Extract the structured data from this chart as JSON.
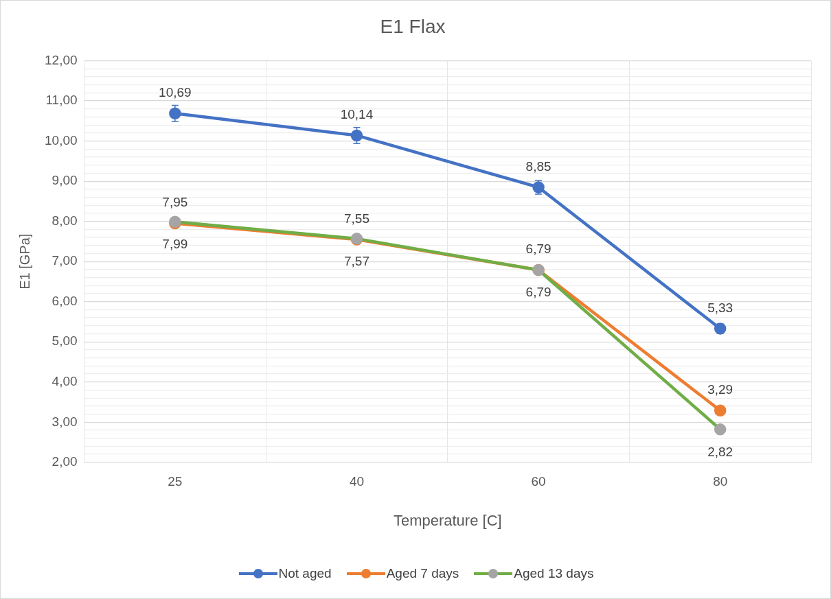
{
  "chart_data": {
    "type": "line",
    "title": "E1 Flax",
    "xlabel": "Temperature [C]",
    "ylabel": "E1 [GPa]",
    "categories": [
      "25",
      "40",
      "60",
      "80"
    ],
    "series": [
      {
        "name": "Not aged",
        "color": "#4472c4",
        "values": [
          10.69,
          10.14,
          8.85,
          5.33
        ],
        "errors": [
          0.2,
          0.2,
          0.17,
          0.12
        ],
        "value_labels": [
          "10,69",
          "10,14",
          "8,85",
          "5,33"
        ]
      },
      {
        "name": "Aged 7 days",
        "color": "#ed7d31",
        "values": [
          7.95,
          7.55,
          6.79,
          3.29
        ],
        "value_labels": [
          "7,95",
          "7,55",
          "6,79",
          "3,29"
        ]
      },
      {
        "name": "Aged 13 days",
        "color": "#70ad47",
        "colors": [
          "#a5a5a5",
          "#a5a5a5",
          "#a5a5a5",
          "#a5a5a5"
        ],
        "values": [
          7.99,
          7.57,
          6.79,
          2.82
        ],
        "value_labels": [
          "7,99",
          "7,57",
          "6,79",
          "2,82"
        ]
      }
    ],
    "ylim": [
      2,
      12
    ],
    "yticks": [
      {
        "value": 2,
        "label": "2,00"
      },
      {
        "value": 2.2,
        "label": null
      },
      {
        "value": 2.4,
        "label": null
      },
      {
        "value": 2.6,
        "label": null
      },
      {
        "value": 2.8,
        "label": null
      },
      {
        "value": 3,
        "label": "3,00"
      },
      {
        "value": 3.2,
        "label": null
      },
      {
        "value": 3.4,
        "label": null
      },
      {
        "value": 3.6,
        "label": null
      },
      {
        "value": 3.8,
        "label": null
      },
      {
        "value": 4,
        "label": "4,00"
      },
      {
        "value": 4.2,
        "label": null
      },
      {
        "value": 4.4,
        "label": null
      },
      {
        "value": 4.6,
        "label": null
      },
      {
        "value": 4.8,
        "label": null
      },
      {
        "value": 5,
        "label": "5,00"
      },
      {
        "value": 5.2,
        "label": null
      },
      {
        "value": 5.4,
        "label": null
      },
      {
        "value": 5.6,
        "label": null
      },
      {
        "value": 5.8,
        "label": null
      },
      {
        "value": 6,
        "label": "6,00"
      },
      {
        "value": 6.2,
        "label": null
      },
      {
        "value": 6.4,
        "label": null
      },
      {
        "value": 6.6,
        "label": null
      },
      {
        "value": 6.8,
        "label": null
      },
      {
        "value": 7,
        "label": "7,00"
      },
      {
        "value": 7.2,
        "label": null
      },
      {
        "value": 7.4,
        "label": null
      },
      {
        "value": 7.6,
        "label": null
      },
      {
        "value": 7.8,
        "label": null
      },
      {
        "value": 8,
        "label": "8,00"
      },
      {
        "value": 8.2,
        "label": null
      },
      {
        "value": 8.4,
        "label": null
      },
      {
        "value": 8.6,
        "label": null
      },
      {
        "value": 8.8,
        "label": null
      },
      {
        "value": 9,
        "label": "9,00"
      },
      {
        "value": 9.2,
        "label": null
      },
      {
        "value": 9.4,
        "label": null
      },
      {
        "value": 9.6,
        "label": null
      },
      {
        "value": 9.8,
        "label": null
      },
      {
        "value": 10,
        "label": "10,00"
      },
      {
        "value": 10.2,
        "label": null
      },
      {
        "value": 10.4,
        "label": null
      },
      {
        "value": 10.6,
        "label": null
      },
      {
        "value": 10.8,
        "label": null
      },
      {
        "value": 11,
        "label": "11,00"
      },
      {
        "value": 11.2,
        "label": null
      },
      {
        "value": 11.4,
        "label": null
      },
      {
        "value": 11.6,
        "label": null
      },
      {
        "value": 11.8,
        "label": null
      },
      {
        "value": 12,
        "label": "12,00"
      }
    ],
    "grid": true,
    "legend": "bottom",
    "marker": "circle",
    "line_style": "solid"
  }
}
